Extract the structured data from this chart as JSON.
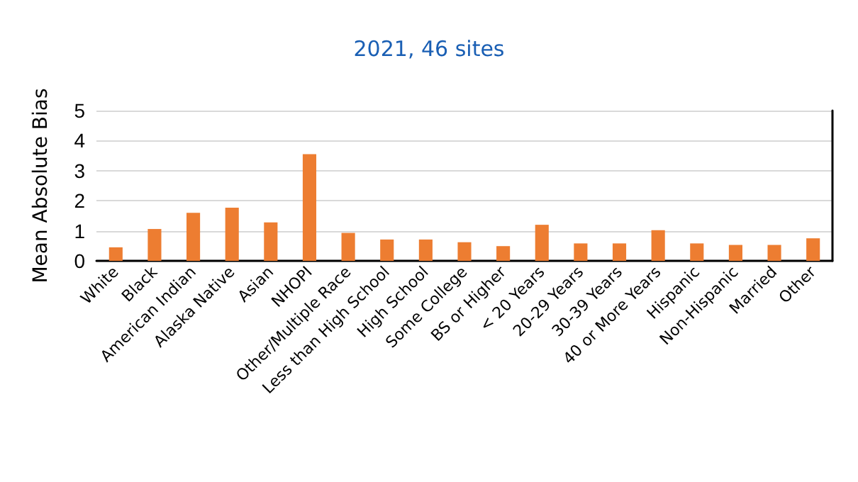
{
  "chart_data": {
    "type": "bar",
    "title": "2021, 46 sites",
    "ylabel": "Mean Absolute Bias",
    "categories": [
      "White",
      "Black",
      "American Indian",
      "Alaska Native",
      "Asian",
      "NHOPI",
      "Other/Multiple Race",
      "Less than High School",
      "High School",
      "Some College",
      "BS or Higher",
      "< 20 Years",
      "20-29 Years",
      "30-39 Years",
      "40 or More Years",
      "Hispanic",
      "Non-Hispanic",
      "Married",
      "Other"
    ],
    "values": [
      0.45,
      1.06,
      1.6,
      1.77,
      1.28,
      3.55,
      0.93,
      0.71,
      0.71,
      0.62,
      0.49,
      1.2,
      0.58,
      0.58,
      1.02,
      0.58,
      0.53,
      0.53,
      0.75
    ],
    "color": "#ed7d31",
    "ylim": [
      0,
      5
    ],
    "yticks": [
      0,
      1,
      2,
      3,
      4,
      5
    ],
    "grid": "y"
  }
}
